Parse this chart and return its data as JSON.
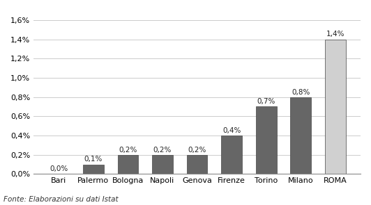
{
  "categories": [
    "Bari",
    "Palermo",
    "Bologna",
    "Napoli",
    "Genova",
    "Firenze",
    "Torino",
    "Milano",
    "ROMA"
  ],
  "values": [
    0.0,
    0.1,
    0.2,
    0.2,
    0.2,
    0.4,
    0.7,
    0.8,
    1.4
  ],
  "labels": [
    "0,0%",
    "0,1%",
    "0,2%",
    "0,2%",
    "0,2%",
    "0,4%",
    "0,7%",
    "0,8%",
    "1,4%"
  ],
  "bar_colors": [
    "#666666",
    "#666666",
    "#666666",
    "#666666",
    "#666666",
    "#666666",
    "#666666",
    "#666666",
    "#d0d0d0"
  ],
  "bar_edge_color": "#444444",
  "ylim": [
    0,
    1.7
  ],
  "yticks": [
    0.0,
    0.2,
    0.4,
    0.6,
    0.8,
    1.0,
    1.2,
    1.4,
    1.6
  ],
  "ytick_labels": [
    "0,0%",
    "0,2%",
    "0,4%",
    "0,6%",
    "0,8%",
    "1,0%",
    "1,2%",
    "1,4%",
    "1,6%"
  ],
  "footnote": "Fonte: Elaborazioni su dati Istat",
  "background_color": "#ffffff",
  "grid_color": "#cccccc",
  "label_fontsize": 7.5,
  "tick_fontsize": 8,
  "footnote_fontsize": 7.5
}
